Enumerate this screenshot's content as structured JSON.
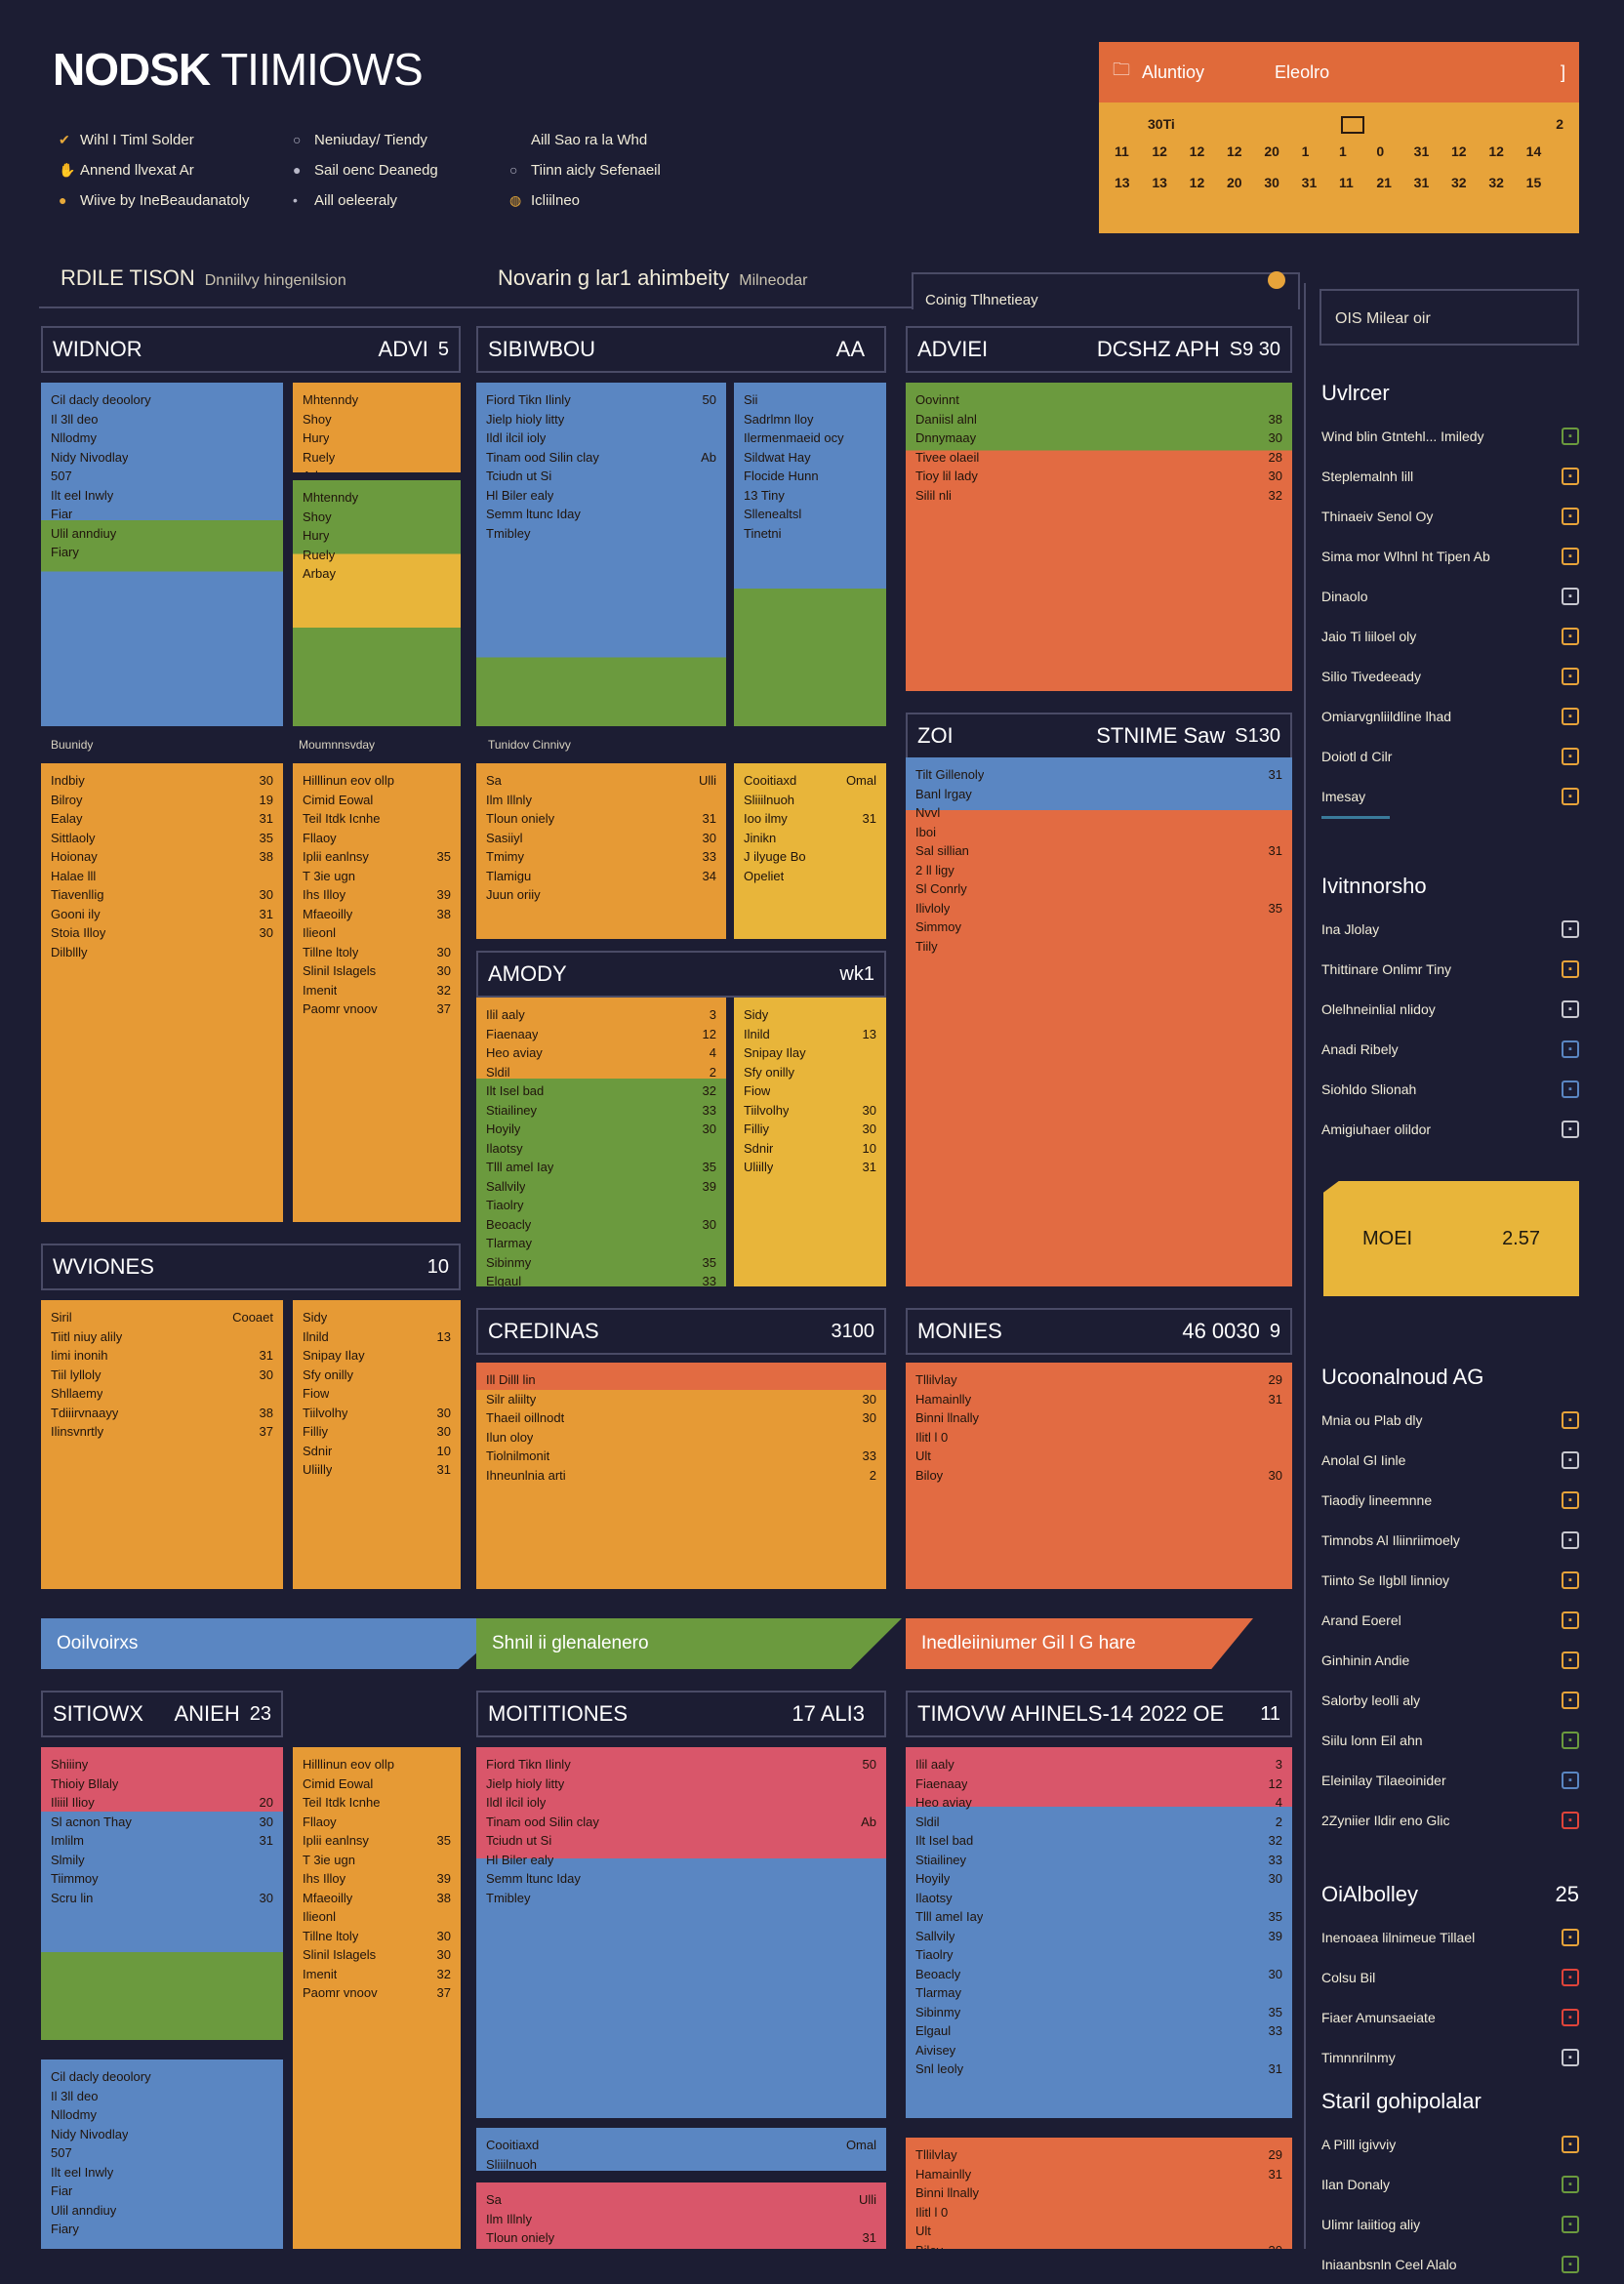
{
  "header": {
    "title_bold": "NODSK",
    "title_rest": " TIIMIOWS",
    "legend": [
      [
        "Wihl I Timl Solder",
        "Annend llvexat Ar",
        "Wiive by IneBeaudanatoly"
      ],
      [
        "Neniuday/ Tiendy",
        "Sail oenc Deanedg",
        "Aill oeleeraly"
      ],
      [
        "Aill Sao ra la Whd",
        "Tiinn aicly Sefenaeil",
        "Icliilneo"
      ]
    ]
  },
  "calendar": {
    "title": "Aluntioy",
    "subtitle": "Eleolro",
    "close": "]",
    "first_label": "30Ti",
    "right_num": "2",
    "row1": [
      "11",
      "12",
      "12",
      "12",
      "20",
      "1",
      "1",
      "0",
      "31",
      "12",
      "12",
      "14"
    ],
    "row2": [
      "13",
      "13",
      "12",
      "20",
      "30",
      "31",
      "11",
      "21",
      "31",
      "32",
      "32",
      "15"
    ]
  },
  "toolbar": {
    "left_label": "RDILE TISON",
    "left_sub": "Dnniilvy hingenilsion",
    "mid_label": "Novarin g lar1 ahimbeity",
    "mid_sub": "Milneodar",
    "tab_label": "Coinig Tlhnetieay"
  },
  "panels": [
    {
      "title": "WIDNOR",
      "title2": "ADVI",
      "num": "5"
    },
    {
      "title": "SIBIWBOU",
      "title2": "AA",
      "num": ""
    },
    {
      "title": "ADVIEI",
      "title2": "DCSHZ APH",
      "num": "S9 30"
    },
    {
      "title": "ZOI",
      "title2": "STNIME Saw",
      "num": "S130"
    },
    {
      "title": "AMODY",
      "title2": "",
      "num": "wk1"
    },
    {
      "title": "WVIONES",
      "title2": "",
      "num": "10"
    },
    {
      "title": "CREDINAS",
      "title2": "",
      "num": "3100"
    },
    {
      "title": "MONIES",
      "title2": "46 0030",
      "num": "9"
    },
    {
      "title": "SITIOWX",
      "title2": "ANIEH",
      "num": "23"
    },
    {
      "title": "MOITITIONES",
      "title2": "17 ALI3",
      "num": ""
    },
    {
      "title": "TIMOVW AHINELS-14 2022 OE",
      "title2": "",
      "num": "11"
    }
  ],
  "captions": [
    "Buunidy",
    "Moumnnsvday",
    "Tunidov Cinnivy"
  ],
  "rows": {
    "a": [
      [
        "Cil dacly deoolory",
        ""
      ],
      [
        "Il 3ll deo",
        ""
      ],
      [
        "Nllodmy",
        ""
      ],
      [
        "Nidy Nivodlay",
        ""
      ],
      [
        "507",
        ""
      ],
      [
        "Ilt eel Inwly",
        ""
      ],
      [
        "Fiar",
        ""
      ],
      [
        "Ulil anndiuy",
        ""
      ],
      [
        "Fiary",
        ""
      ]
    ],
    "b": [
      [
        "Mhtenndy",
        ""
      ],
      [
        "Shoy",
        ""
      ],
      [
        "Hury",
        ""
      ],
      [
        "Ruely",
        ""
      ],
      [
        "Arbay",
        ""
      ]
    ],
    "c": [
      [
        "Fiord Tikn Ilinly",
        "50"
      ],
      [
        "Jielp hioly litty",
        ""
      ],
      [
        "Ildl ilcil ioly",
        ""
      ],
      [
        "Tinam ood Silin clay",
        "Ab"
      ],
      [
        "Tciudn ut Si",
        ""
      ],
      [
        "Hl Biler ealy",
        ""
      ],
      [
        "Semm ltunc Iday",
        ""
      ],
      [
        "Tmibley",
        ""
      ]
    ],
    "d": [
      [
        "Sii",
        ""
      ],
      [
        "Sadrlmn lloy",
        ""
      ],
      [
        "Ilermenmaeid ocy",
        ""
      ],
      [
        "Sildwat Hay",
        ""
      ],
      [
        "Flocide Hunn",
        ""
      ],
      [
        "13 Tiny",
        ""
      ],
      [
        "Sllenealtsl",
        ""
      ],
      [
        "Tinetni",
        ""
      ]
    ],
    "e": [
      [
        "Oovinnt",
        ""
      ],
      [
        "Daniisl alnl",
        "38"
      ],
      [
        "Dnnymaay",
        "30"
      ],
      [
        "Tivee olaeil",
        "28"
      ],
      [
        "Tioy lil lady",
        "30"
      ],
      [
        "Silil nli",
        "32"
      ]
    ],
    "f": [
      [
        "Indbiy",
        "30"
      ],
      [
        "Bilroy",
        "19"
      ],
      [
        "Ealay",
        "31"
      ],
      [
        "Sittlaoly",
        "35"
      ],
      [
        "Hoionay",
        "38"
      ],
      [
        "Halae lll",
        ""
      ],
      [
        "Tiavenllig",
        "30"
      ],
      [
        "Gooni ily",
        "31"
      ],
      [
        "Stoia Illoy",
        "30"
      ],
      [
        "Dilbllly",
        ""
      ]
    ],
    "g": [
      [
        "Ilil aaly",
        "3"
      ],
      [
        "Fiaenaay",
        "12"
      ],
      [
        "Heo aviay",
        "4"
      ],
      [
        "Sldil",
        "2"
      ],
      [
        "Ilt Isel bad",
        "32"
      ],
      [
        "Stiailiney",
        "33"
      ],
      [
        "Hoyily",
        "30"
      ],
      [
        "Ilaotsy",
        ""
      ],
      [
        "Tlll amel Iay",
        "35"
      ],
      [
        "Sallvily",
        "39"
      ],
      [
        "Tiaolry",
        ""
      ],
      [
        "Beoacly",
        "30"
      ],
      [
        "Tlarmay",
        ""
      ],
      [
        "Sibinmy",
        "35"
      ],
      [
        "Elgaul",
        "33"
      ],
      [
        "Aivisey",
        ""
      ],
      [
        "Snl leoly",
        "31"
      ]
    ],
    "h": [
      [
        "Hilllinun eov ollp",
        ""
      ],
      [
        "Cimid Eowal",
        ""
      ],
      [
        "Teil Itdk Icnhe",
        ""
      ],
      [
        "Fllaoy",
        ""
      ],
      [
        "Iplii eanlnsy",
        "35"
      ],
      [
        "T 3ie ugn",
        ""
      ],
      [
        "Ihs Illoy",
        "39"
      ],
      [
        "Mfaeoilly",
        "38"
      ],
      [
        "Ilieonl",
        ""
      ],
      [
        "Tillne ltoly",
        "30"
      ],
      [
        "Slinil Islagels",
        "30"
      ],
      [
        "Imenit",
        "32"
      ],
      [
        "Paomr vnoov",
        "37"
      ]
    ],
    "i": [
      [
        "Sa",
        "Ulli"
      ],
      [
        "Ilm Illnly",
        ""
      ],
      [
        "Tloun oniely",
        "31"
      ],
      [
        "Sasiiyl",
        "30"
      ],
      [
        "Tmimy",
        "33"
      ],
      [
        "Tlamigu",
        "34"
      ],
      [
        "Juun oriiy",
        ""
      ]
    ],
    "j": [
      [
        "Cooitiaxd",
        "Omal"
      ],
      [
        "Sliiilnuoh",
        ""
      ],
      [
        "Ioo ilmy",
        "31"
      ],
      [
        "Jinikn",
        ""
      ],
      [
        "J ilyuge Bo",
        ""
      ],
      [
        "Opeliet",
        ""
      ]
    ],
    "k": [
      [
        "Siril",
        "Cooaet"
      ],
      [
        "Tiitl niuy alily",
        ""
      ],
      [
        "Iimi inonih",
        "31"
      ],
      [
        "Tiil lylloly",
        "30"
      ],
      [
        "Shllaemy",
        ""
      ],
      [
        "Tdiiirvnaayy",
        "38"
      ],
      [
        "Ilinsvnrtly",
        "37"
      ]
    ],
    "l": [
      [
        "Sidy",
        ""
      ],
      [
        "Ilnild",
        "13"
      ],
      [
        "Snipay Ilay",
        ""
      ],
      [
        "Sfy onilly",
        ""
      ],
      [
        "Fiow",
        ""
      ],
      [
        "Tiilvolhy",
        "30"
      ],
      [
        "Filliy",
        "30"
      ],
      [
        "Sdnir",
        "10"
      ],
      [
        "Uliilly",
        "31"
      ]
    ],
    "m": [
      [
        "Tilt Gillenoly",
        "31"
      ],
      [
        "Banl lrgay",
        ""
      ],
      [
        "Nvvl",
        ""
      ],
      [
        "Iboi",
        ""
      ],
      [
        "Sal sillian",
        "31"
      ],
      [
        "2 ll ligy",
        ""
      ],
      [
        "Sl Conrly",
        ""
      ],
      [
        "Ilivloly",
        "35"
      ],
      [
        "Simmoy",
        ""
      ],
      [
        "Tiily",
        ""
      ]
    ],
    "n": [
      [
        "Ill Dilll lin",
        ""
      ],
      [
        "Silr aliilty",
        "30"
      ],
      [
        "Thaeil oillnodt",
        "30"
      ],
      [
        "Ilun oloy",
        ""
      ],
      [
        "Tiolnilmonit",
        "33"
      ],
      [
        "Ihneunlnia arti",
        "2"
      ]
    ],
    "o": [
      [
        "Tllilvlay",
        "29"
      ],
      [
        "Hamainlly",
        "31"
      ],
      [
        "Binni llnally",
        ""
      ],
      [
        "Ilitl l  0",
        ""
      ],
      [
        "Ult",
        ""
      ],
      [
        "Biloy",
        "30"
      ]
    ],
    "p": [
      [
        "Shiiiny",
        ""
      ],
      [
        "Thioiy Bllaly",
        ""
      ],
      [
        "Iliiil Ilioy",
        "20"
      ],
      [
        "Sl acnon Thay",
        "30"
      ],
      [
        "Imlilm",
        "31"
      ],
      [
        "Slmily",
        ""
      ],
      [
        "Tiimmoy",
        ""
      ],
      [
        "Scru lin",
        "30"
      ]
    ]
  },
  "banners": [
    "Ooilvoirxs",
    "Shnil ii glenalenero",
    "Inedleiiniumer Gil l G hare"
  ],
  "sidebar": {
    "search": "OIS Milear oir",
    "s1_title": "Uvlrcer",
    "s1": [
      "Wind blin Gtntehl... Imiledy",
      "Steplemalnh lill",
      "Thinaeiv Senol Oy",
      "Sima mor Wlhnl ht Tipen Ab",
      "Dinaolo",
      "Jaio Ti liiloel oly",
      "Silio Tivedeeady",
      "Omiarvgnliildline lhad",
      "Doiotl d Cilr",
      "Imesay"
    ],
    "s2_title": "Ivitnnorsho",
    "s2": [
      "Ina Jlolay",
      "Thittinare Onlimr Tiny",
      "Olelhneinlial nlidoy",
      "Anadi Ribely",
      "Siohldo Slionah",
      "Amigiuhaer olildor"
    ],
    "card_label": "MOEI",
    "card_num": "2.57",
    "s3_title": "Ucoonalnoud AG",
    "s3": [
      "Mnia ou Plab dly",
      "Anolal Gl Iinle",
      "Tiaodiy lineemnne",
      "Timnobs Al Iliinriimoely",
      "Tiinto Se Ilgbll linnioy",
      "Arand Eoerel",
      "Ginhinin Andie",
      "Salorby leolli aly",
      "Siilu lonn Eil ahn",
      "Eleinilay Tilaeoinider",
      "2Zyniier Ildir eno Glic"
    ],
    "s4_title": "OiAlbolley",
    "s4_num": "25",
    "s4": [
      "Inenoaea lilnimeue Tillael",
      "Colsu Bil",
      "Fiaer Amunsaeiate",
      "Timnnrilnmy"
    ],
    "s5_title": "Staril gohipolalar",
    "s5": [
      "A Pilll igivviy",
      "Ilan Donaly",
      "Ulimr laiitiog aliy",
      "Iniaanbsnln Ceel Alalo"
    ]
  },
  "colors": {
    "bg": "#1c1d33",
    "blue": "#5a86c2",
    "orange": "#e69a35",
    "red": "#e26b42",
    "green": "#6b9a3e",
    "pink": "#d9566a",
    "yellow": "#e8b53a"
  }
}
